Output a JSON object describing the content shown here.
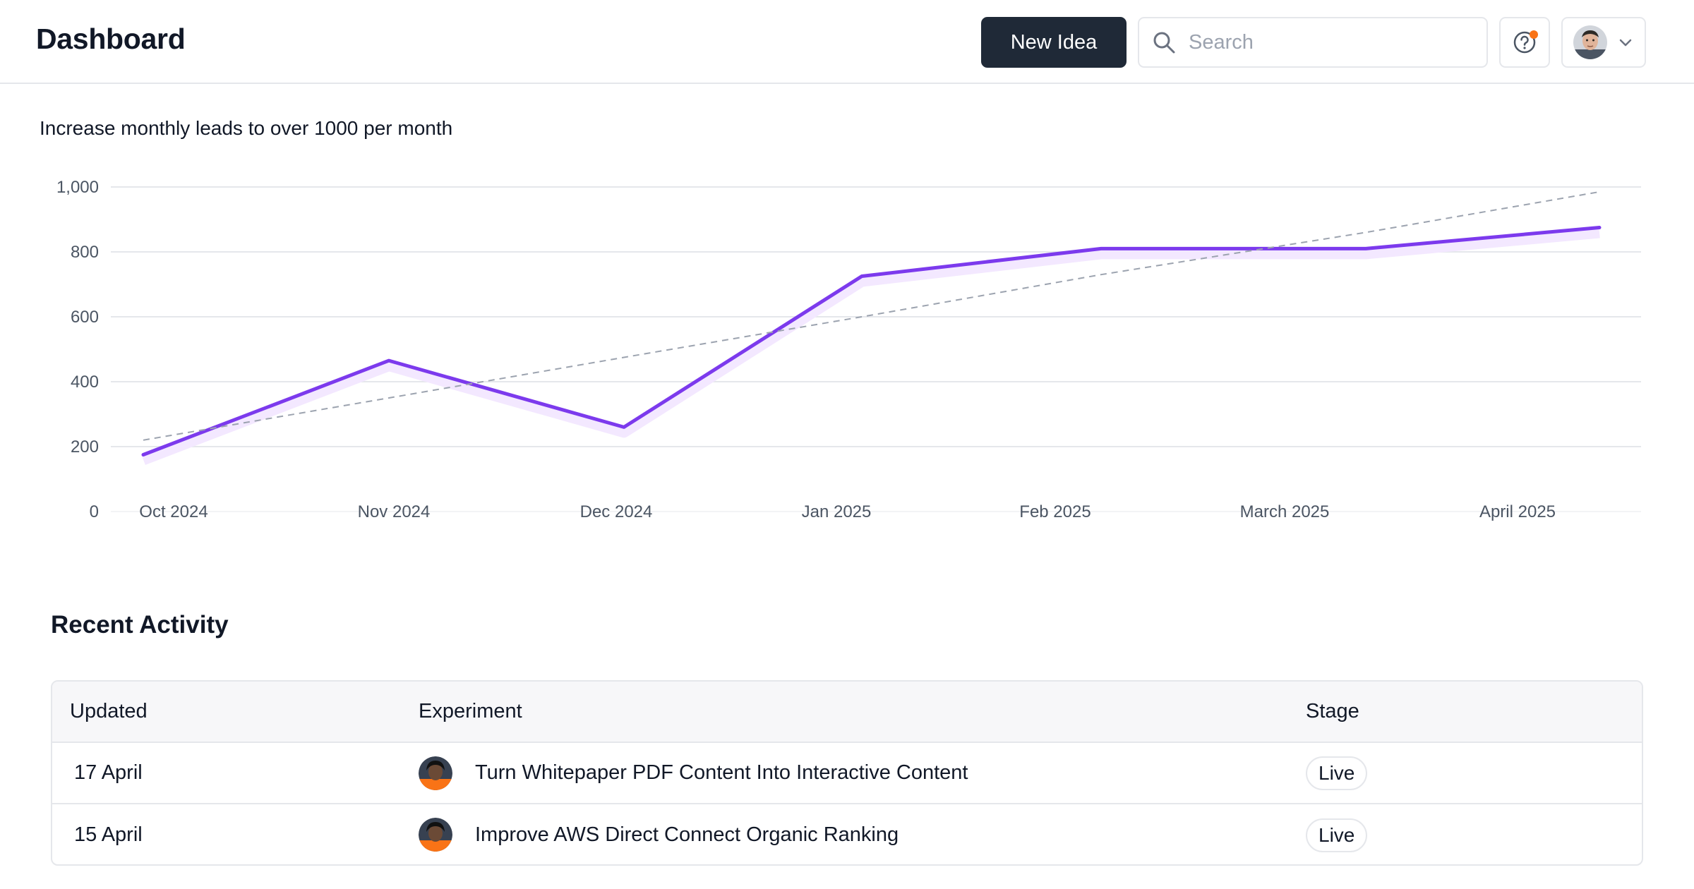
{
  "header": {
    "title": "Dashboard",
    "new_idea_label": "New Idea",
    "search_placeholder": "Search"
  },
  "chart_title": "Increase monthly leads to over 1000 per month",
  "chart_data": {
    "type": "line",
    "title": "Increase monthly leads to over 1000 per month",
    "categories": [
      "Oct 2024",
      "Nov 2024",
      "Dec 2024",
      "Jan 2025",
      "Feb 2025",
      "March 2025",
      "April 2025"
    ],
    "series": [
      {
        "values": [
          175,
          465,
          260,
          725,
          810,
          810,
          875
        ],
        "style": "solid",
        "color": "#7c3aed"
      },
      {
        "values": [
          220,
          350,
          475,
          600,
          730,
          860,
          985
        ],
        "style": "dashed",
        "color": "#9ca3af",
        "trend": true
      }
    ],
    "yticks": [
      "0",
      "200",
      "400",
      "600",
      "800",
      "1,000"
    ],
    "ylim": [
      0,
      1000
    ],
    "grid": true
  },
  "recent_activity": {
    "title": "Recent Activity",
    "columns": [
      "Updated",
      "Experiment",
      "Stage"
    ],
    "rows": [
      {
        "updated": "17 April",
        "experiment": "Turn Whitepaper PDF Content Into Interactive Content",
        "stage": "Live"
      },
      {
        "updated": "15 April",
        "experiment": "Improve AWS Direct Connect Organic Ranking",
        "stage": "Live"
      }
    ]
  }
}
